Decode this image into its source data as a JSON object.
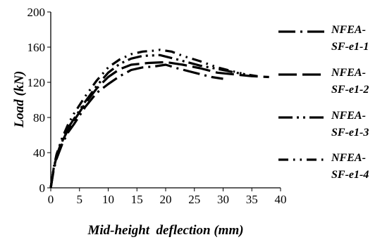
{
  "chart_data": {
    "type": "line",
    "xlabel": "Mid-height  deflection (mm)",
    "ylabel": "Load (kN)",
    "xlim": [
      0,
      40
    ],
    "ylim": [
      0,
      200
    ],
    "xticks": [
      "0",
      "5",
      "10",
      "15",
      "20",
      "25",
      "30",
      "35",
      "40"
    ],
    "yticks": [
      "0",
      "40",
      "80",
      "120",
      "160",
      "200"
    ],
    "grid": false,
    "legend_position": "right",
    "series": [
      {
        "name": "NFEA-\nSF-e1-1",
        "legend_lines": [
          "NFEA-",
          "SF-e1-1"
        ],
        "dash": "long-dash-dot",
        "points": [
          [
            0,
            0
          ],
          [
            0.5,
            20
          ],
          [
            1,
            33
          ],
          [
            2,
            50
          ],
          [
            3,
            63
          ],
          [
            4,
            72
          ],
          [
            5,
            82
          ],
          [
            6,
            92
          ],
          [
            8,
            108
          ],
          [
            10,
            118
          ],
          [
            12,
            127
          ],
          [
            14,
            134
          ],
          [
            16,
            137
          ],
          [
            18,
            138
          ],
          [
            20,
            140
          ],
          [
            22,
            136
          ],
          [
            25,
            131
          ],
          [
            28,
            126
          ],
          [
            30,
            124
          ]
        ]
      },
      {
        "name": "NFEA-\nSF-e1-2",
        "legend_lines": [
          "NFEA-",
          "SF-e1-2"
        ],
        "dash": "long-dash",
        "points": [
          [
            0,
            0
          ],
          [
            0.5,
            22
          ],
          [
            1,
            35
          ],
          [
            2,
            53
          ],
          [
            3,
            66
          ],
          [
            4,
            76
          ],
          [
            5,
            86
          ],
          [
            6,
            96
          ],
          [
            8,
            113
          ],
          [
            10,
            126
          ],
          [
            12,
            135
          ],
          [
            14,
            140
          ],
          [
            17,
            142
          ],
          [
            20,
            143
          ],
          [
            23,
            140
          ],
          [
            26,
            136
          ],
          [
            29,
            131
          ],
          [
            32,
            129
          ],
          [
            35,
            127
          ],
          [
            38,
            126
          ]
        ]
      },
      {
        "name": "NFEA-\nSF-e1-3",
        "legend_lines": [
          "NFEA-",
          "SF-e1-3"
        ],
        "dash": "long-dash-dot-dot",
        "points": [
          [
            0,
            0
          ],
          [
            0.5,
            22
          ],
          [
            1,
            36
          ],
          [
            2,
            55
          ],
          [
            3,
            68
          ],
          [
            4,
            78
          ],
          [
            5,
            88
          ],
          [
            6,
            98
          ],
          [
            8,
            116
          ],
          [
            10,
            131
          ],
          [
            12,
            141
          ],
          [
            14,
            147
          ],
          [
            16,
            150
          ],
          [
            19,
            151
          ],
          [
            22,
            146
          ],
          [
            26,
            139
          ],
          [
            30,
            134
          ],
          [
            33,
            130
          ],
          [
            36,
            127
          ]
        ]
      },
      {
        "name": "NFEA-\nSF-e1-4",
        "legend_lines": [
          "NFEA-",
          "SF-e1-4"
        ],
        "dash": "dash-dot-dot",
        "points": [
          [
            0,
            0
          ],
          [
            0.5,
            23
          ],
          [
            1,
            38
          ],
          [
            2,
            57
          ],
          [
            3,
            72
          ],
          [
            4,
            84
          ],
          [
            5,
            94
          ],
          [
            6,
            104
          ],
          [
            8,
            122
          ],
          [
            10,
            137
          ],
          [
            12,
            146
          ],
          [
            14,
            152
          ],
          [
            16,
            155
          ],
          [
            18,
            156
          ],
          [
            19,
            157
          ],
          [
            21,
            155
          ],
          [
            23,
            150
          ],
          [
            26,
            144
          ],
          [
            29,
            137
          ],
          [
            32,
            132
          ],
          [
            34,
            129
          ]
        ]
      }
    ]
  }
}
